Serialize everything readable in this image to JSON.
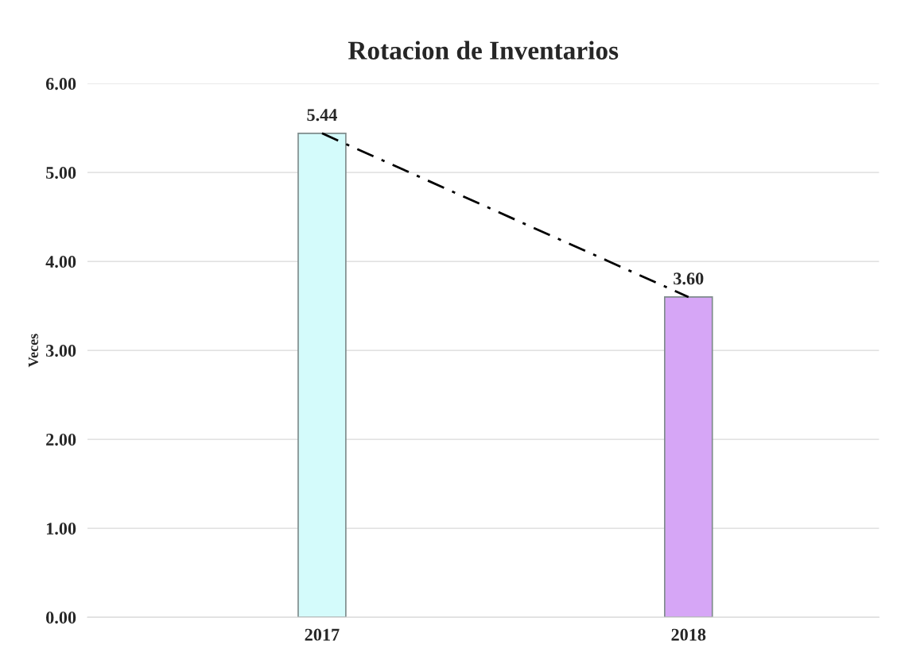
{
  "chart_data": {
    "type": "bar",
    "title": "Rotacion de Inventarios",
    "ylabel": "Veces",
    "categories": [
      "2017",
      "2018"
    ],
    "series": [
      {
        "colors": [
          "#d4fbfb",
          "#d6a6f6"
        ],
        "values": [
          5.44,
          3.6
        ],
        "value_labels": [
          "5.44",
          "3.60"
        ]
      },
      {
        "type": "line",
        "color": "#000000",
        "line_style": "dashed",
        "values": [
          5.44,
          3.6
        ]
      }
    ],
    "ylim": [
      0,
      6
    ],
    "yticks": [
      {
        "value": 0,
        "label": "0.00"
      },
      {
        "value": 1,
        "label": "1.00"
      },
      {
        "value": 2,
        "label": "2.00"
      },
      {
        "value": 3,
        "label": "3.00"
      },
      {
        "value": 4,
        "label": "4.00"
      },
      {
        "value": 5,
        "label": "5.00"
      },
      {
        "value": 6,
        "label": "6.00"
      }
    ],
    "grid": "y",
    "legend": false
  }
}
